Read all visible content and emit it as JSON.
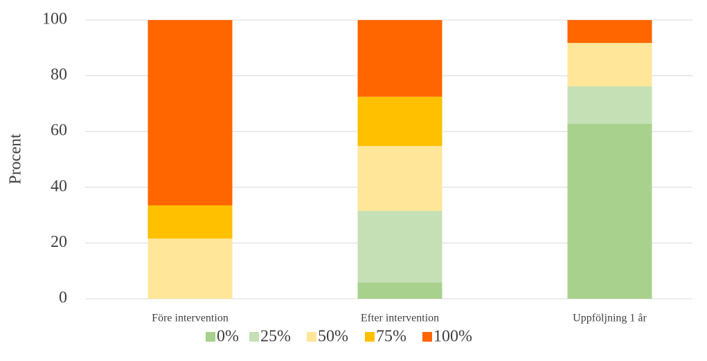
{
  "chart_data": {
    "type": "stacked_bar",
    "y_label": "Procent",
    "categories": [
      "Före intervention",
      "Efter intervention",
      "Uppföljning 1 år"
    ],
    "series": [
      {
        "name": "0%",
        "color": "#a9d18e",
        "values": [
          0,
          5.9,
          62.8
        ]
      },
      {
        "name": "25%",
        "color": "#c5e0b4",
        "values": [
          0,
          25.6,
          13.4
        ]
      },
      {
        "name": "50%",
        "color": "#ffe699",
        "values": [
          21.6,
          23.3,
          15.6
        ]
      },
      {
        "name": "75%",
        "color": "#ffc000",
        "values": [
          11.9,
          17.7,
          0
        ]
      },
      {
        "name": "100%",
        "color": "#ff6600",
        "values": [
          66.5,
          27.5,
          8.2
        ]
      }
    ],
    "ylim": [
      0,
      100
    ],
    "yticks": [
      0,
      20,
      40,
      60,
      80,
      100
    ],
    "grid": true,
    "legend": "bottom"
  }
}
